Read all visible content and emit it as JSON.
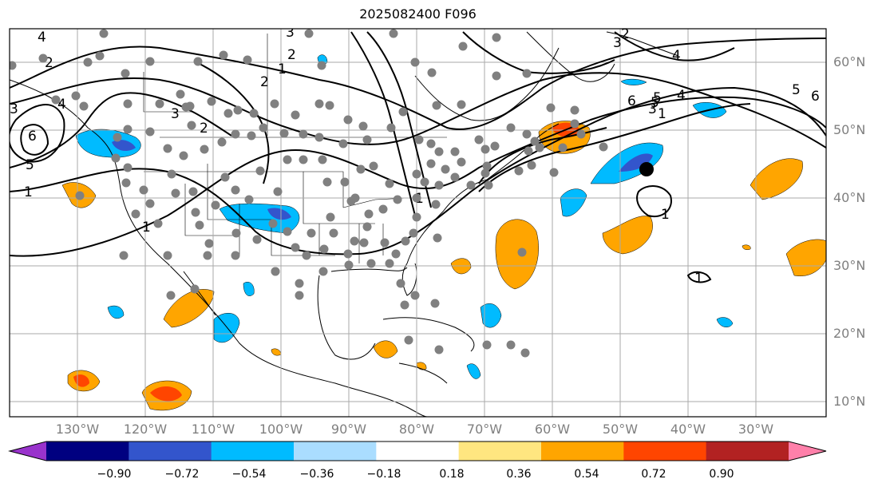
{
  "title": "2025082400 F096",
  "lon_labels": [
    "130°W",
    "120°W",
    "110°W",
    "100°W",
    "90°W",
    "80°W",
    "70°W",
    "60°W",
    "50°W",
    "40°W",
    "30°W"
  ],
  "lat_labels": [
    "60°N",
    "50°N",
    "40°N",
    "30°N",
    "20°N",
    "10°N"
  ],
  "colorbar": {
    "ticks": [
      "−0.90",
      "−0.72",
      "−0.54",
      "−0.36",
      "−0.18",
      "0.18",
      "0.36",
      "0.54",
      "0.72",
      "0.90"
    ],
    "colors": [
      "#9933cc",
      "#000080",
      "#3355cc",
      "#00bbff",
      "#aaddff",
      "#ffffff",
      "#ffe680",
      "#ffa500",
      "#ff4500",
      "#b22222",
      "#ff80aa"
    ]
  },
  "contour_labels": [
    "4",
    "4",
    "3",
    "3",
    "2",
    "3",
    "5",
    "6",
    "5",
    "4",
    "1",
    "2",
    "3",
    "1",
    "2",
    "2",
    "3",
    "1",
    "5",
    "6",
    "1",
    "5",
    "6",
    "4",
    "1",
    "2",
    "1",
    "1"
  ],
  "colors": {
    "station": "#808080",
    "contour": "#000000",
    "center_marker": "#000000",
    "axis_text": "#7f7f7f"
  }
}
